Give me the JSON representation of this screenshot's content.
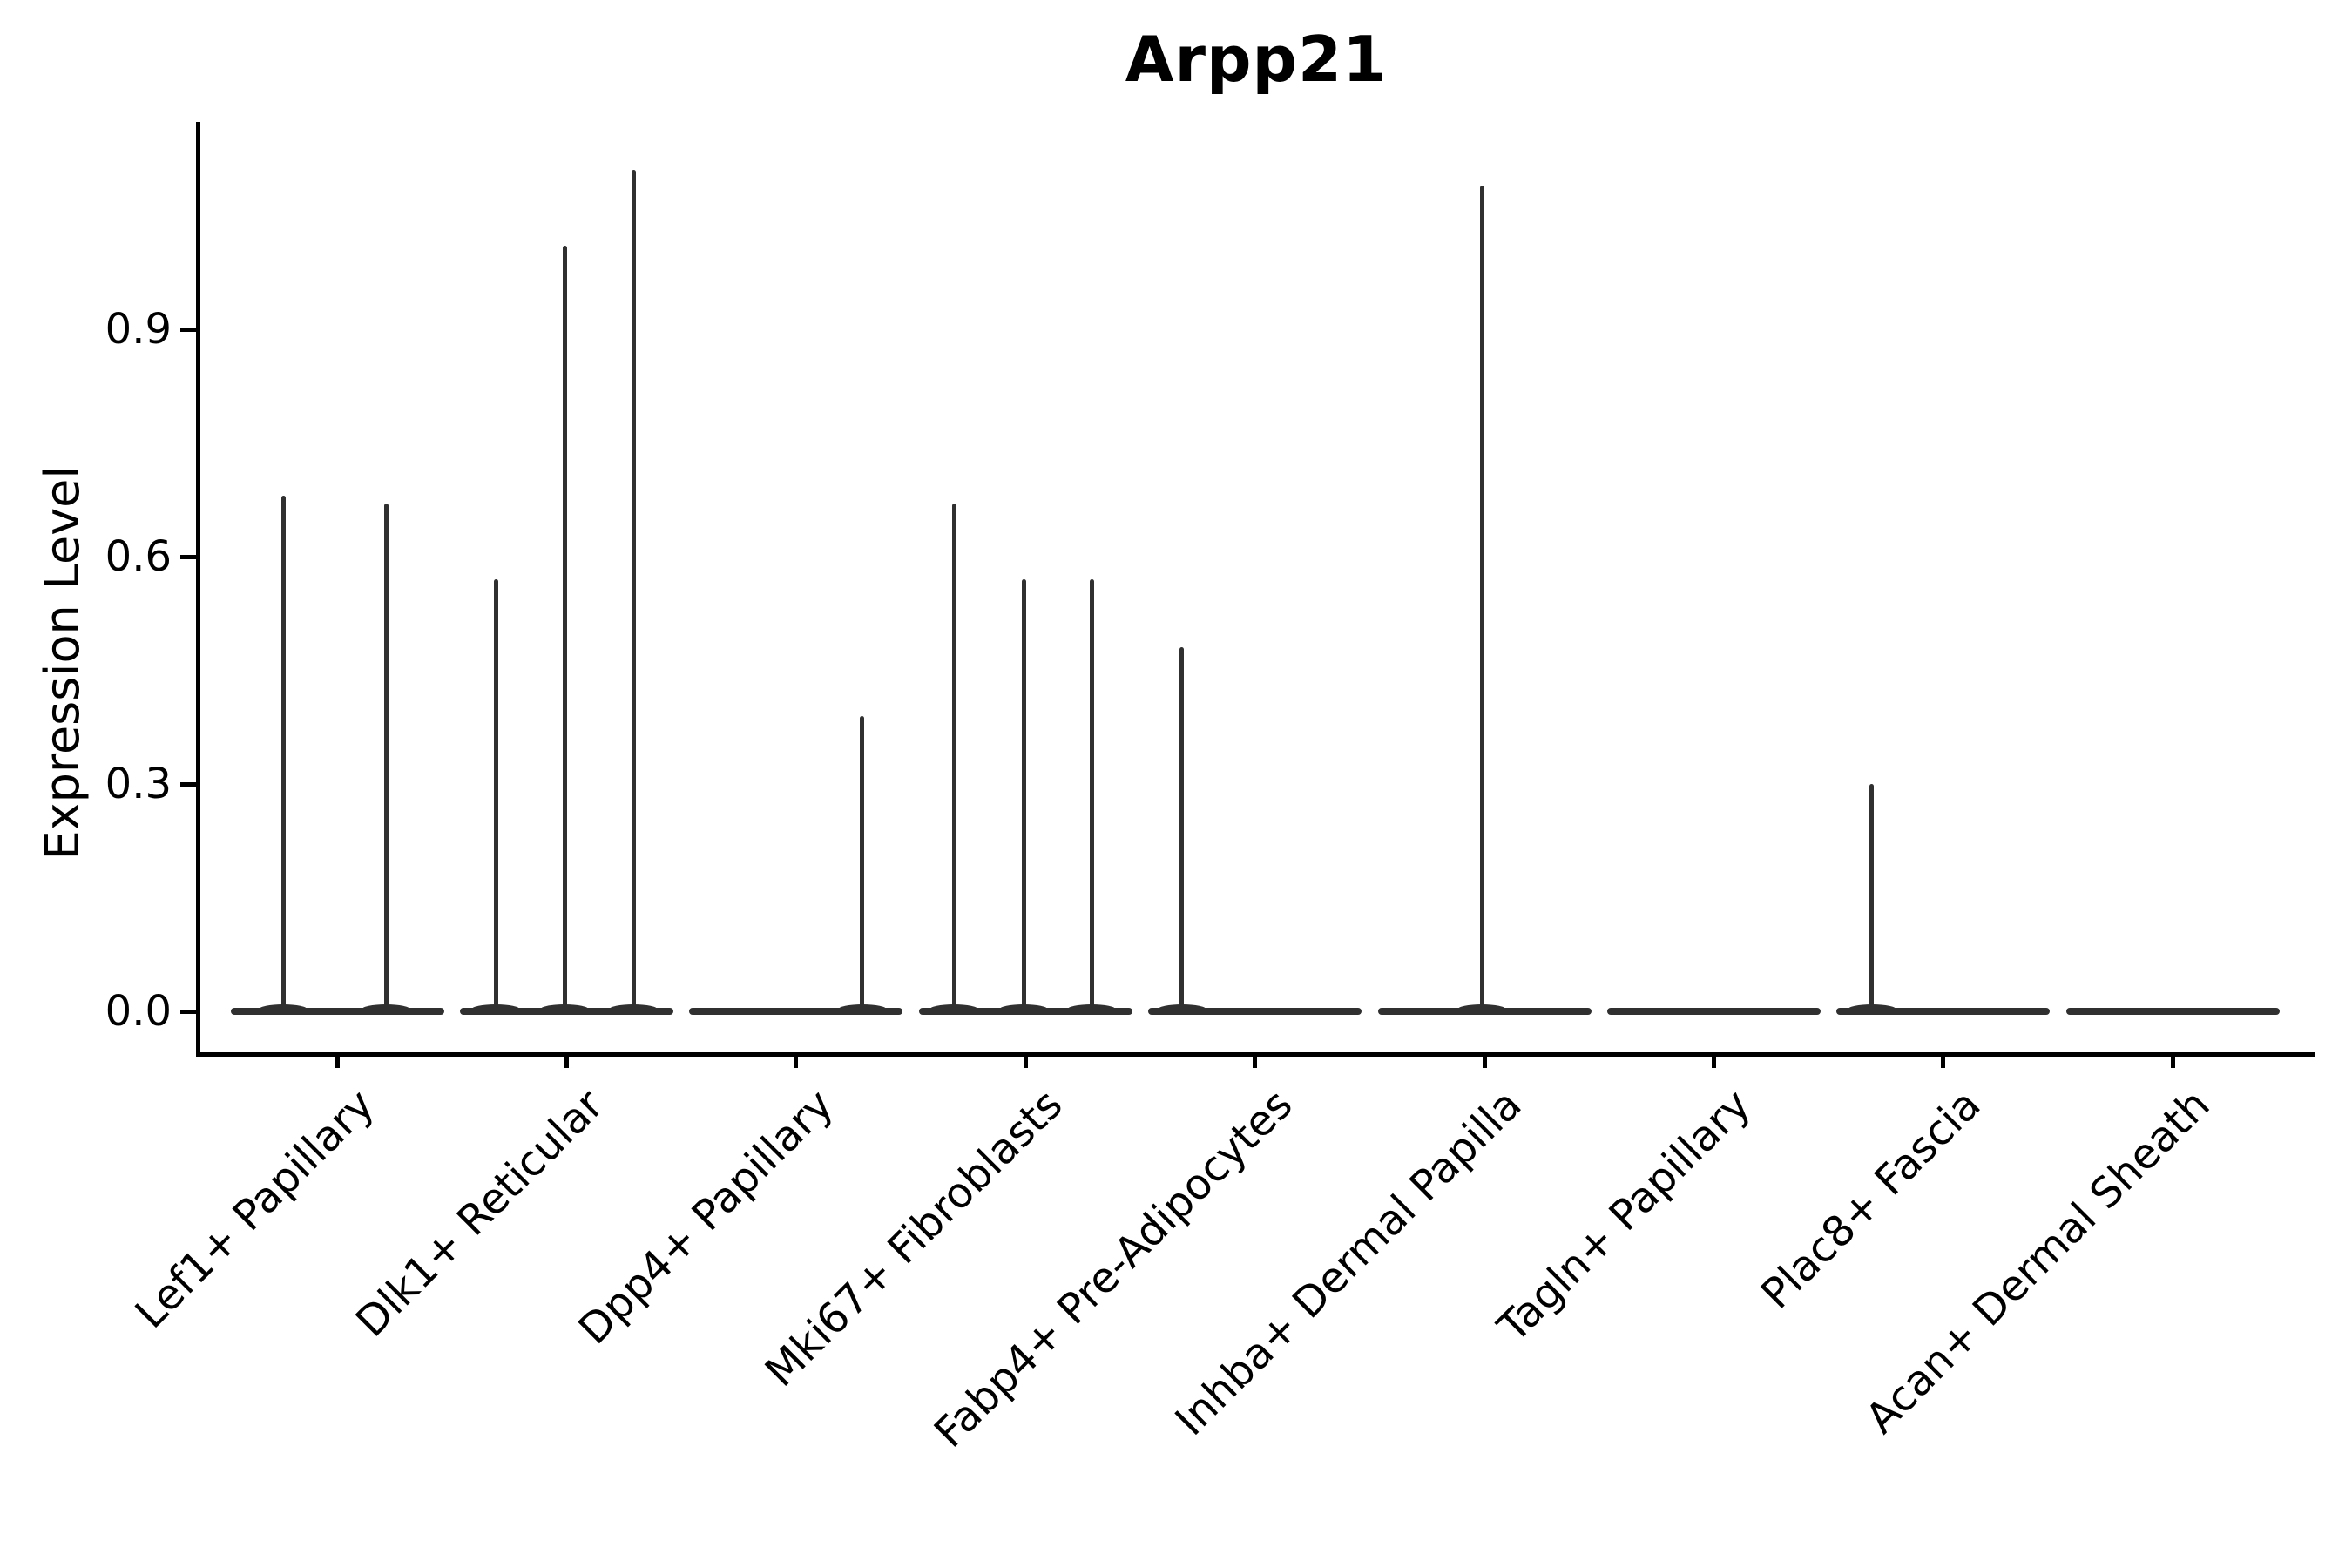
{
  "title": "Arpp21",
  "colors": {
    "violin_line": "#303030",
    "axis": "#000000",
    "text": "#000000",
    "background": "#ffffff"
  },
  "chart_data": {
    "type": "violin",
    "title": "Arpp21",
    "xlabel": "",
    "ylabel": "Expression Level",
    "ylim": [
      -0.06,
      1.17
    ],
    "yticks": [
      0.0,
      0.3,
      0.6,
      0.9
    ],
    "ytick_labels": [
      "0.0",
      "0.3",
      "0.6",
      "0.9"
    ],
    "xtick_label_angle": 45,
    "grid": false,
    "legend": "none",
    "baseline_value": 0.0,
    "categories": [
      "Lef1+ Papillary",
      "Dlk1+ Reticular",
      "Dpp4+ Papillary",
      "Mki67+ Fibroblasts",
      "Fabp4+ Pre-Adipocytes",
      "Inhba+ Dermal Papilla",
      "Tagln+ Papillary",
      "Plac8+ Fascia",
      "Acan+ Dermal Sheath"
    ],
    "violins": [
      {
        "category": "Lef1+ Papillary",
        "spikes": [
          {
            "dx": -62,
            "max": 0.68
          },
          {
            "dx": 56,
            "max": 0.67
          }
        ]
      },
      {
        "category": "Dlk1+ Reticular",
        "spikes": [
          {
            "dx": -81,
            "max": 0.57
          },
          {
            "dx": -2,
            "max": 1.01
          },
          {
            "dx": 77,
            "max": 1.11
          }
        ]
      },
      {
        "category": "Dpp4+ Papillary",
        "spikes": [
          {
            "dx": 76,
            "max": 0.39
          }
        ]
      },
      {
        "category": "Mki67+ Fibroblasts",
        "spikes": [
          {
            "dx": -82,
            "max": 0.67
          },
          {
            "dx": -2,
            "max": 0.57
          },
          {
            "dx": 76,
            "max": 0.57
          }
        ]
      },
      {
        "category": "Fabp4+ Pre-Adipocytes",
        "spikes": [
          {
            "dx": -84,
            "max": 0.48
          }
        ]
      },
      {
        "category": "Inhba+ Dermal Papilla",
        "spikes": [
          {
            "dx": -3,
            "max": 1.09
          }
        ]
      },
      {
        "category": "Tagln+ Papillary",
        "spikes": []
      },
      {
        "category": "Plac8+ Fascia",
        "spikes": [
          {
            "dx": -82,
            "max": 0.3
          }
        ]
      },
      {
        "category": "Acan+ Dermal Sheath",
        "spikes": []
      }
    ]
  }
}
